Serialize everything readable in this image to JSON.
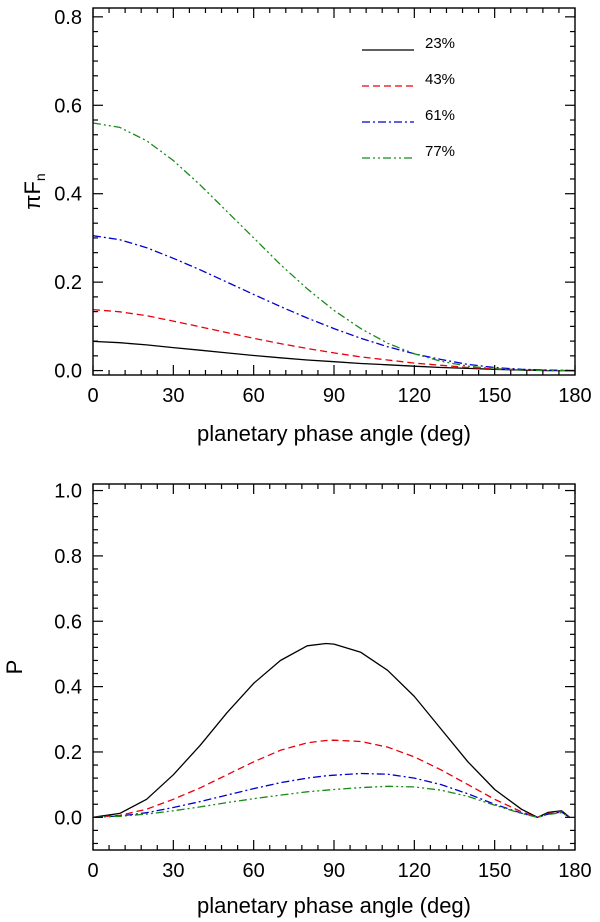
{
  "chart_data": [
    {
      "type": "line",
      "title": "",
      "xlabel": "planetary phase angle (deg)",
      "ylabel": "πF",
      "ylabel_subscript": "n",
      "xlim": [
        0,
        180
      ],
      "ylim": [
        -0.01,
        0.82
      ],
      "xticks": [
        0,
        30,
        60,
        90,
        120,
        150,
        180
      ],
      "xtick_labels": [
        "0",
        "30",
        "60",
        "90",
        "120",
        "150",
        "180"
      ],
      "yticks": [
        0.0,
        0.2,
        0.4,
        0.6,
        0.8
      ],
      "ytick_labels": [
        "0.0",
        "0.2",
        "0.4",
        "0.6",
        "0.8"
      ],
      "legend_position": "top-right",
      "x": [
        0,
        10,
        20,
        30,
        40,
        50,
        60,
        70,
        80,
        90,
        100,
        110,
        120,
        130,
        140,
        150,
        160,
        170,
        180
      ],
      "series": [
        {
          "name": "23%",
          "color": "#000000",
          "dash": "solid",
          "values": [
            0.066,
            0.063,
            0.058,
            0.052,
            0.046,
            0.04,
            0.034,
            0.029,
            0.024,
            0.02,
            0.016,
            0.013,
            0.01,
            0.007,
            0.005,
            0.003,
            0.001,
            0.0,
            0.0
          ]
        },
        {
          "name": "43%",
          "color": "#e8000b",
          "dash": "dashed",
          "values": [
            0.138,
            0.133,
            0.124,
            0.112,
            0.099,
            0.086,
            0.073,
            0.061,
            0.05,
            0.04,
            0.031,
            0.024,
            0.017,
            0.012,
            0.007,
            0.004,
            0.002,
            0.001,
            0.0
          ]
        },
        {
          "name": "61%",
          "color": "#0000d0",
          "dash": "dashdot",
          "values": [
            0.305,
            0.296,
            0.278,
            0.254,
            0.228,
            0.2,
            0.172,
            0.145,
            0.119,
            0.095,
            0.073,
            0.054,
            0.038,
            0.025,
            0.014,
            0.007,
            0.003,
            0.001,
            0.0
          ]
        },
        {
          "name": "77%",
          "color": "#1a8a1a",
          "dash": "dashdotdot",
          "values": [
            0.56,
            0.55,
            0.52,
            0.475,
            0.42,
            0.36,
            0.3,
            0.24,
            0.185,
            0.136,
            0.095,
            0.062,
            0.038,
            0.021,
            0.01,
            0.004,
            0.001,
            0.0,
            0.0
          ]
        }
      ]
    },
    {
      "type": "line",
      "title": "",
      "xlabel": "planetary phase angle (deg)",
      "ylabel": "P",
      "xlim": [
        0,
        180
      ],
      "ylim": [
        -0.1,
        1.02
      ],
      "xticks": [
        0,
        30,
        60,
        90,
        120,
        150,
        180
      ],
      "xtick_labels": [
        "0",
        "30",
        "60",
        "90",
        "120",
        "150",
        "180"
      ],
      "yticks": [
        0.0,
        0.2,
        0.4,
        0.6,
        0.8,
        1.0
      ],
      "ytick_labels": [
        "0.0",
        "0.2",
        "0.4",
        "0.6",
        "0.8",
        "1.0"
      ],
      "x": [
        0,
        10,
        20,
        30,
        40,
        50,
        60,
        70,
        80,
        87,
        90,
        100,
        110,
        120,
        130,
        140,
        150,
        160,
        166,
        170,
        175,
        178
      ],
      "series": [
        {
          "name": "23%",
          "color": "#000000",
          "dash": "solid",
          "values": [
            0.0,
            0.012,
            0.055,
            0.13,
            0.22,
            0.32,
            0.41,
            0.48,
            0.525,
            0.532,
            0.53,
            0.505,
            0.45,
            0.37,
            0.27,
            0.17,
            0.085,
            0.025,
            0.0,
            0.015,
            0.02,
            0.0
          ]
        },
        {
          "name": "43%",
          "color": "#e8000b",
          "dash": "dashed",
          "values": [
            0.0,
            0.006,
            0.025,
            0.055,
            0.09,
            0.13,
            0.17,
            0.205,
            0.228,
            0.235,
            0.236,
            0.232,
            0.215,
            0.185,
            0.145,
            0.1,
            0.055,
            0.017,
            0.0,
            0.012,
            0.018,
            0.0
          ]
        },
        {
          "name": "61%",
          "color": "#0000d0",
          "dash": "dashdot",
          "values": [
            0.0,
            0.004,
            0.014,
            0.03,
            0.048,
            0.068,
            0.088,
            0.106,
            0.12,
            0.127,
            0.129,
            0.134,
            0.132,
            0.12,
            0.1,
            0.072,
            0.04,
            0.013,
            0.0,
            0.01,
            0.016,
            0.0
          ]
        },
        {
          "name": "77%",
          "color": "#1a8a1a",
          "dash": "dashdotdot",
          "values": [
            0.0,
            0.003,
            0.01,
            0.02,
            0.032,
            0.045,
            0.057,
            0.068,
            0.078,
            0.083,
            0.085,
            0.091,
            0.095,
            0.093,
            0.083,
            0.064,
            0.037,
            0.012,
            0.0,
            0.009,
            0.014,
            0.0
          ]
        }
      ]
    }
  ]
}
